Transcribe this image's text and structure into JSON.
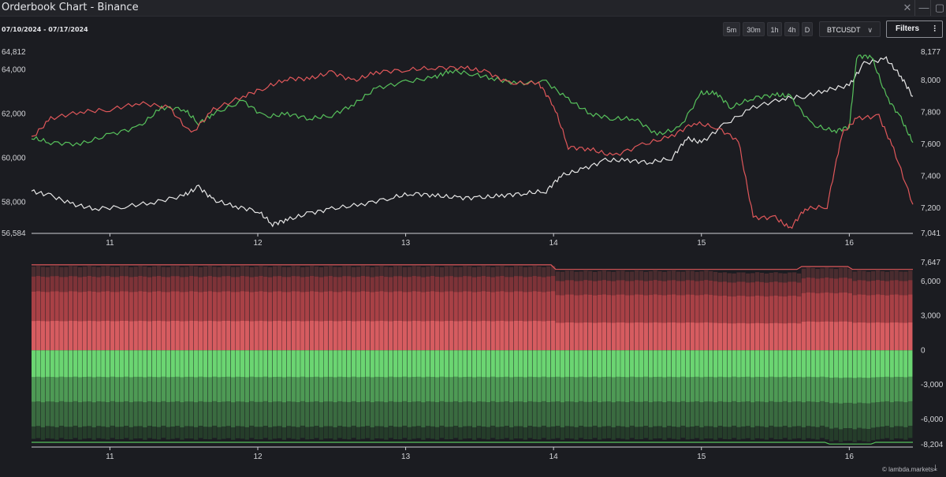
{
  "window": {
    "title": "Orderbook Chart - Binance",
    "close_glyph": "✕",
    "minimize_glyph": "—",
    "maximize_glyph": "▢"
  },
  "toolbar": {
    "date_range": "07/10/2024 - 07/17/2024",
    "timeframes": [
      "5m",
      "30m",
      "1h",
      "4h",
      "D"
    ],
    "symbol": "BTCUSDT",
    "symbol_chevron": "∨",
    "filters_label": "Filters",
    "filters_icon": "⫶"
  },
  "branding": {
    "watermark": "© lambda.markets",
    "download_icon": "⤓"
  },
  "colors": {
    "bid": "#57c25c",
    "ask": "#e0575a",
    "price": "#e6e6e6",
    "bg": "#1b1c21"
  },
  "chart_data": [
    {
      "type": "line",
      "name": "price-and-orderbook-totals",
      "x": [
        "11",
        "12",
        "13",
        "14",
        "15",
        "16"
      ],
      "xtick_days": [
        11,
        12,
        13,
        14,
        15,
        16
      ],
      "x_range_days": [
        10.47,
        16.43
      ],
      "left_axis": {
        "ticks": [
          "64,812",
          "64,000",
          "62,000",
          "60,000",
          "58,000",
          "56,584"
        ],
        "tick_values": [
          64812,
          64000,
          62000,
          60000,
          58000,
          56584
        ],
        "range": [
          56584,
          64812
        ]
      },
      "right_axis": {
        "ticks": [
          "8,177",
          "8,000",
          "7,800",
          "7,600",
          "7,400",
          "7,200",
          "7,041"
        ],
        "tick_values": [
          8177,
          8000,
          7800,
          7600,
          7400,
          7200,
          7041
        ],
        "range": [
          7041,
          8177
        ]
      },
      "series": [
        {
          "axis": "left",
          "color": "#e6e6e6",
          "points": [
            [
              10.47,
              58500
            ],
            [
              10.6,
              58300
            ],
            [
              10.75,
              57900
            ],
            [
              10.9,
              57700
            ],
            [
              11.1,
              57800
            ],
            [
              11.3,
              58000
            ],
            [
              11.5,
              58300
            ],
            [
              11.6,
              58700
            ],
            [
              11.7,
              58100
            ],
            [
              11.85,
              57800
            ],
            [
              12.0,
              57600
            ],
            [
              12.1,
              57000
            ],
            [
              12.2,
              57200
            ],
            [
              12.35,
              57500
            ],
            [
              12.5,
              57700
            ],
            [
              12.7,
              57900
            ],
            [
              12.9,
              58200
            ],
            [
              13.05,
              58400
            ],
            [
              13.2,
              58300
            ],
            [
              13.35,
              58200
            ],
            [
              13.5,
              58200
            ],
            [
              13.65,
              58300
            ],
            [
              13.8,
              58400
            ],
            [
              13.95,
              58500
            ],
            [
              14.05,
              59200
            ],
            [
              14.2,
              59500
            ],
            [
              14.35,
              59900
            ],
            [
              14.5,
              59900
            ],
            [
              14.65,
              59800
            ],
            [
              14.8,
              60000
            ],
            [
              14.9,
              60900
            ],
            [
              15.0,
              60700
            ],
            [
              15.15,
              61500
            ],
            [
              15.35,
              62300
            ],
            [
              15.55,
              62700
            ],
            [
              15.7,
              62800
            ],
            [
              15.85,
              63100
            ],
            [
              16.0,
              63300
            ],
            [
              16.1,
              64300
            ],
            [
              16.25,
              64500
            ],
            [
              16.35,
              63700
            ],
            [
              16.43,
              62800
            ]
          ]
        },
        {
          "axis": "right",
          "color": "#57c25c",
          "points": [
            [
              10.47,
              7640
            ],
            [
              10.6,
              7610
            ],
            [
              10.8,
              7600
            ],
            [
              11.0,
              7660
            ],
            [
              11.2,
              7710
            ],
            [
              11.35,
              7830
            ],
            [
              11.5,
              7820
            ],
            [
              11.6,
              7730
            ],
            [
              11.7,
              7790
            ],
            [
              11.9,
              7870
            ],
            [
              12.05,
              7770
            ],
            [
              12.2,
              7790
            ],
            [
              12.35,
              7760
            ],
            [
              12.5,
              7780
            ],
            [
              12.65,
              7850
            ],
            [
              12.8,
              7950
            ],
            [
              13.0,
              7990
            ],
            [
              13.2,
              8020
            ],
            [
              13.3,
              8060
            ],
            [
              13.45,
              8040
            ],
            [
              13.6,
              8010
            ],
            [
              13.75,
              7980
            ],
            [
              13.95,
              7990
            ],
            [
              14.1,
              7880
            ],
            [
              14.25,
              7790
            ],
            [
              14.4,
              7760
            ],
            [
              14.55,
              7760
            ],
            [
              14.7,
              7660
            ],
            [
              14.85,
              7700
            ],
            [
              15.0,
              7920
            ],
            [
              15.1,
              7920
            ],
            [
              15.2,
              7830
            ],
            [
              15.35,
              7890
            ],
            [
              15.5,
              7910
            ],
            [
              15.6,
              7900
            ],
            [
              15.75,
              7720
            ],
            [
              15.9,
              7680
            ],
            [
              16.0,
              7710
            ],
            [
              16.05,
              8150
            ],
            [
              16.15,
              8150
            ],
            [
              16.25,
              7900
            ],
            [
              16.35,
              7760
            ],
            [
              16.43,
              7610
            ]
          ]
        },
        {
          "axis": "left",
          "color": "#e0575a",
          "points": [
            [
              10.47,
              60900
            ],
            [
              10.6,
              61800
            ],
            [
              10.8,
              62100
            ],
            [
              11.0,
              62200
            ],
            [
              11.2,
              62500
            ],
            [
              11.4,
              62300
            ],
            [
              11.55,
              61100
            ],
            [
              11.7,
              62200
            ],
            [
              11.9,
              62800
            ],
            [
              12.05,
              63200
            ],
            [
              12.2,
              63600
            ],
            [
              12.35,
              63600
            ],
            [
              12.5,
              63900
            ],
            [
              12.65,
              63500
            ],
            [
              12.8,
              63900
            ],
            [
              13.0,
              64000
            ],
            [
              13.2,
              64100
            ],
            [
              13.4,
              64100
            ],
            [
              13.55,
              63900
            ],
            [
              13.7,
              63400
            ],
            [
              13.9,
              63400
            ],
            [
              14.0,
              62400
            ],
            [
              14.1,
              60500
            ],
            [
              14.25,
              60400
            ],
            [
              14.4,
              60100
            ],
            [
              14.6,
              60600
            ],
            [
              14.8,
              61000
            ],
            [
              14.95,
              61600
            ],
            [
              15.1,
              61400
            ],
            [
              15.25,
              60800
            ],
            [
              15.35,
              57300
            ],
            [
              15.5,
              57300
            ],
            [
              15.6,
              56800
            ],
            [
              15.7,
              57700
            ],
            [
              15.85,
              57800
            ],
            [
              15.95,
              61100
            ],
            [
              16.05,
              61800
            ],
            [
              16.2,
              61900
            ],
            [
              16.3,
              60400
            ],
            [
              16.43,
              57900
            ]
          ]
        }
      ]
    },
    {
      "type": "bar",
      "name": "orderbook-depth",
      "x": [
        "11",
        "12",
        "13",
        "14",
        "15",
        "16"
      ],
      "left_axis": {
        "ticks": []
      },
      "right_axis": {
        "ticks": [
          "7,647",
          "6,000",
          "3,000",
          "0",
          "-3,000",
          "-6,000",
          "-8,204"
        ],
        "tick_values": [
          7647,
          6000,
          3000,
          0,
          -3000,
          -6000,
          -8204
        ],
        "range": [
          -8204,
          7647
        ]
      },
      "series": [
        {
          "name": "asks",
          "color": "#e0575a",
          "approx_total": 7300
        },
        {
          "name": "bids",
          "color": "#57c25c",
          "approx_total": -7700
        }
      ]
    }
  ]
}
